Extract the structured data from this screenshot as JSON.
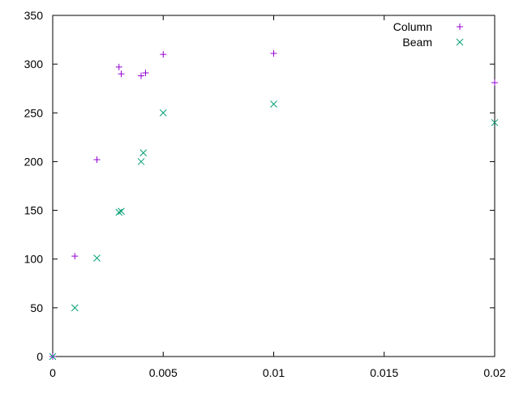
{
  "chart_data": {
    "type": "scatter",
    "xlim": [
      0,
      0.02
    ],
    "ylim": [
      0,
      350
    ],
    "xticks": [
      0,
      0.005,
      0.01,
      0.015,
      0.02
    ],
    "xtick_labels": [
      "0",
      "0.005",
      "0.01",
      "0.015",
      "0.02"
    ],
    "yticks": [
      0,
      50,
      100,
      150,
      200,
      250,
      300,
      350
    ],
    "ytick_labels": [
      "0",
      "50",
      "100",
      "150",
      "200",
      "250",
      "300",
      "350"
    ],
    "grid": false,
    "legend_position": "top-right",
    "series": [
      {
        "name": "Column",
        "marker": "plus",
        "color": "#9400d3",
        "points": [
          [
            0,
            0
          ],
          [
            0.001,
            103
          ],
          [
            0.002,
            202
          ],
          [
            0.003,
            297
          ],
          [
            0.0031,
            290
          ],
          [
            0.004,
            288
          ],
          [
            0.0042,
            291
          ],
          [
            0.005,
            310
          ],
          [
            0.01,
            311
          ],
          [
            0.02,
            281
          ]
        ]
      },
      {
        "name": "Beam",
        "marker": "cross",
        "color": "#009e73",
        "points": [
          [
            0,
            0
          ],
          [
            0.001,
            50
          ],
          [
            0.002,
            101
          ],
          [
            0.003,
            148
          ],
          [
            0.0031,
            149
          ],
          [
            0.004,
            200
          ],
          [
            0.0041,
            209
          ],
          [
            0.005,
            250
          ],
          [
            0.01,
            259
          ],
          [
            0.02,
            240
          ]
        ]
      }
    ]
  }
}
